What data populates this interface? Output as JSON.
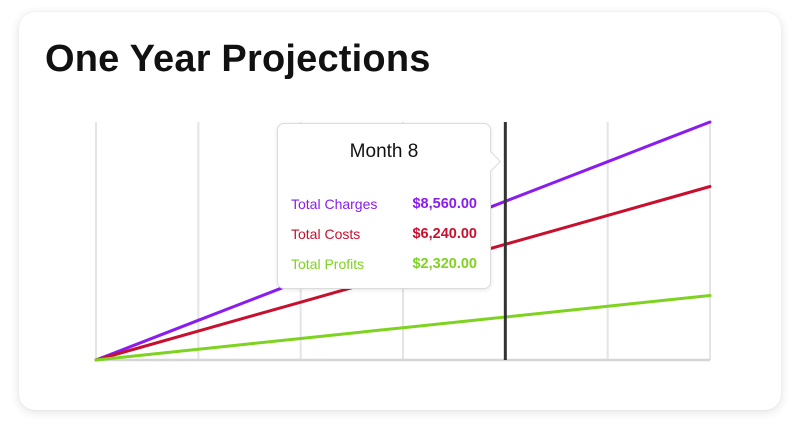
{
  "card": {
    "title": "One Year Projections"
  },
  "colors": {
    "charges": "#8a1cf0",
    "costs": "#c8102e",
    "profits": "#7ed321",
    "grid": "#e4e4e4",
    "crosshair": "#333333"
  },
  "tooltip": {
    "title": "Month 8",
    "rows": [
      {
        "label": "Total Charges",
        "value": "$8,560.00",
        "color": "#8a1cf0"
      },
      {
        "label": "Total Costs",
        "value": "$6,240.00",
        "color": "#c8102e"
      },
      {
        "label": "Total Profits",
        "value": "$2,320.00",
        "color": "#7ed321"
      }
    ]
  },
  "chart_data": {
    "type": "line",
    "title": "One Year Projections",
    "xlabel": "",
    "ylabel": "",
    "x": [
      0,
      1,
      2,
      3,
      4,
      5,
      6,
      7,
      8,
      9,
      10,
      11,
      12
    ],
    "xlim": [
      0,
      12
    ],
    "ylim": [
      0,
      12840
    ],
    "grid": true,
    "highlight_x": 8,
    "series": [
      {
        "name": "Total Charges",
        "color": "#8a1cf0",
        "values": [
          0,
          1070,
          2140,
          3210,
          4280,
          5350,
          6420,
          7490,
          8560,
          9630,
          10700,
          11770,
          12840
        ]
      },
      {
        "name": "Total Costs",
        "color": "#c8102e",
        "values": [
          0,
          780,
          1560,
          2340,
          3120,
          3900,
          4680,
          5460,
          6240,
          7020,
          7800,
          8580,
          9360
        ]
      },
      {
        "name": "Total Profits",
        "color": "#7ed321",
        "values": [
          0,
          290,
          580,
          870,
          1160,
          1450,
          1740,
          2030,
          2320,
          2610,
          2900,
          3190,
          3480
        ]
      }
    ]
  }
}
